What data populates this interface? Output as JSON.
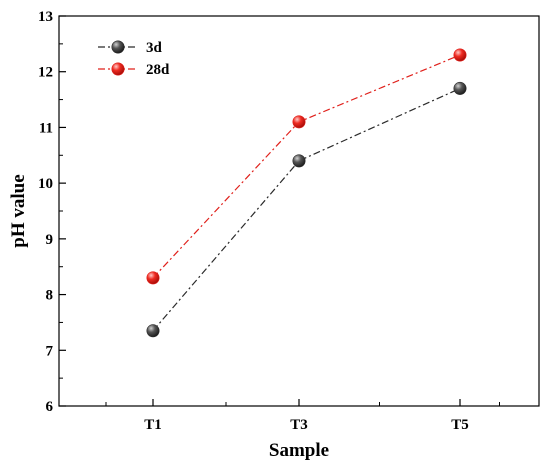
{
  "chart_data": {
    "type": "line",
    "categories": [
      "T1",
      "T3",
      "T5"
    ],
    "series": [
      {
        "name": "3d",
        "values": [
          7.35,
          10.4,
          11.7
        ],
        "color": "#2b2b2b",
        "marker_color": "#4a4a4a"
      },
      {
        "name": "28d",
        "values": [
          8.3,
          11.1,
          12.3
        ],
        "color": "#e0201b",
        "marker_color": "#e8271f"
      }
    ],
    "xlabel": "Sample",
    "ylabel": "pH value",
    "ylim": [
      6,
      13
    ],
    "yticks": [
      "6",
      "7",
      "8",
      "9",
      "10",
      "11",
      "12",
      "13"
    ],
    "grid": false,
    "legend_position": "top-left"
  }
}
